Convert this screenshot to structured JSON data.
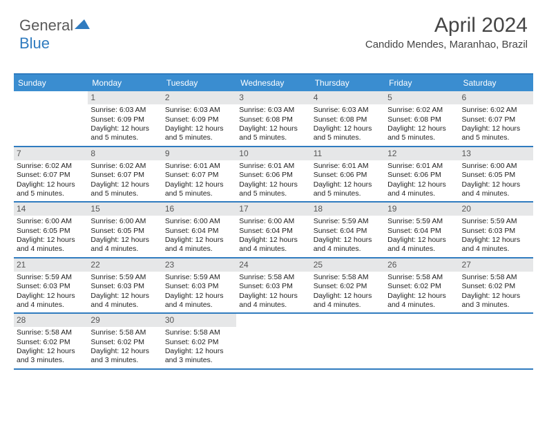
{
  "logo": {
    "part1": "General",
    "part2": "Blue"
  },
  "title": "April 2024",
  "location": "Candido Mendes, Maranhao, Brazil",
  "colors": {
    "accent": "#2f7bbf",
    "header_bg": "#3a8dd0",
    "daynum_bg": "#e6e7e8",
    "text": "#222222",
    "logo_gray": "#5a5a5a"
  },
  "dow": [
    "Sunday",
    "Monday",
    "Tuesday",
    "Wednesday",
    "Thursday",
    "Friday",
    "Saturday"
  ],
  "weeks": [
    [
      {
        "n": "",
        "empty": true
      },
      {
        "n": "1",
        "sr": "6:03 AM",
        "ss": "6:09 PM",
        "dl": "12 hours and 5 minutes."
      },
      {
        "n": "2",
        "sr": "6:03 AM",
        "ss": "6:09 PM",
        "dl": "12 hours and 5 minutes."
      },
      {
        "n": "3",
        "sr": "6:03 AM",
        "ss": "6:08 PM",
        "dl": "12 hours and 5 minutes."
      },
      {
        "n": "4",
        "sr": "6:03 AM",
        "ss": "6:08 PM",
        "dl": "12 hours and 5 minutes."
      },
      {
        "n": "5",
        "sr": "6:02 AM",
        "ss": "6:08 PM",
        "dl": "12 hours and 5 minutes."
      },
      {
        "n": "6",
        "sr": "6:02 AM",
        "ss": "6:07 PM",
        "dl": "12 hours and 5 minutes."
      }
    ],
    [
      {
        "n": "7",
        "sr": "6:02 AM",
        "ss": "6:07 PM",
        "dl": "12 hours and 5 minutes."
      },
      {
        "n": "8",
        "sr": "6:02 AM",
        "ss": "6:07 PM",
        "dl": "12 hours and 5 minutes."
      },
      {
        "n": "9",
        "sr": "6:01 AM",
        "ss": "6:07 PM",
        "dl": "12 hours and 5 minutes."
      },
      {
        "n": "10",
        "sr": "6:01 AM",
        "ss": "6:06 PM",
        "dl": "12 hours and 5 minutes."
      },
      {
        "n": "11",
        "sr": "6:01 AM",
        "ss": "6:06 PM",
        "dl": "12 hours and 5 minutes."
      },
      {
        "n": "12",
        "sr": "6:01 AM",
        "ss": "6:06 PM",
        "dl": "12 hours and 4 minutes."
      },
      {
        "n": "13",
        "sr": "6:00 AM",
        "ss": "6:05 PM",
        "dl": "12 hours and 4 minutes."
      }
    ],
    [
      {
        "n": "14",
        "sr": "6:00 AM",
        "ss": "6:05 PM",
        "dl": "12 hours and 4 minutes."
      },
      {
        "n": "15",
        "sr": "6:00 AM",
        "ss": "6:05 PM",
        "dl": "12 hours and 4 minutes."
      },
      {
        "n": "16",
        "sr": "6:00 AM",
        "ss": "6:04 PM",
        "dl": "12 hours and 4 minutes."
      },
      {
        "n": "17",
        "sr": "6:00 AM",
        "ss": "6:04 PM",
        "dl": "12 hours and 4 minutes."
      },
      {
        "n": "18",
        "sr": "5:59 AM",
        "ss": "6:04 PM",
        "dl": "12 hours and 4 minutes."
      },
      {
        "n": "19",
        "sr": "5:59 AM",
        "ss": "6:04 PM",
        "dl": "12 hours and 4 minutes."
      },
      {
        "n": "20",
        "sr": "5:59 AM",
        "ss": "6:03 PM",
        "dl": "12 hours and 4 minutes."
      }
    ],
    [
      {
        "n": "21",
        "sr": "5:59 AM",
        "ss": "6:03 PM",
        "dl": "12 hours and 4 minutes."
      },
      {
        "n": "22",
        "sr": "5:59 AM",
        "ss": "6:03 PM",
        "dl": "12 hours and 4 minutes."
      },
      {
        "n": "23",
        "sr": "5:59 AM",
        "ss": "6:03 PM",
        "dl": "12 hours and 4 minutes."
      },
      {
        "n": "24",
        "sr": "5:58 AM",
        "ss": "6:03 PM",
        "dl": "12 hours and 4 minutes."
      },
      {
        "n": "25",
        "sr": "5:58 AM",
        "ss": "6:02 PM",
        "dl": "12 hours and 4 minutes."
      },
      {
        "n": "26",
        "sr": "5:58 AM",
        "ss": "6:02 PM",
        "dl": "12 hours and 4 minutes."
      },
      {
        "n": "27",
        "sr": "5:58 AM",
        "ss": "6:02 PM",
        "dl": "12 hours and 3 minutes."
      }
    ],
    [
      {
        "n": "28",
        "sr": "5:58 AM",
        "ss": "6:02 PM",
        "dl": "12 hours and 3 minutes."
      },
      {
        "n": "29",
        "sr": "5:58 AM",
        "ss": "6:02 PM",
        "dl": "12 hours and 3 minutes."
      },
      {
        "n": "30",
        "sr": "5:58 AM",
        "ss": "6:02 PM",
        "dl": "12 hours and 3 minutes."
      },
      {
        "n": "",
        "empty": true
      },
      {
        "n": "",
        "empty": true
      },
      {
        "n": "",
        "empty": true
      },
      {
        "n": "",
        "empty": true
      }
    ]
  ],
  "labels": {
    "sunrise": "Sunrise:",
    "sunset": "Sunset:",
    "daylight": "Daylight:"
  }
}
